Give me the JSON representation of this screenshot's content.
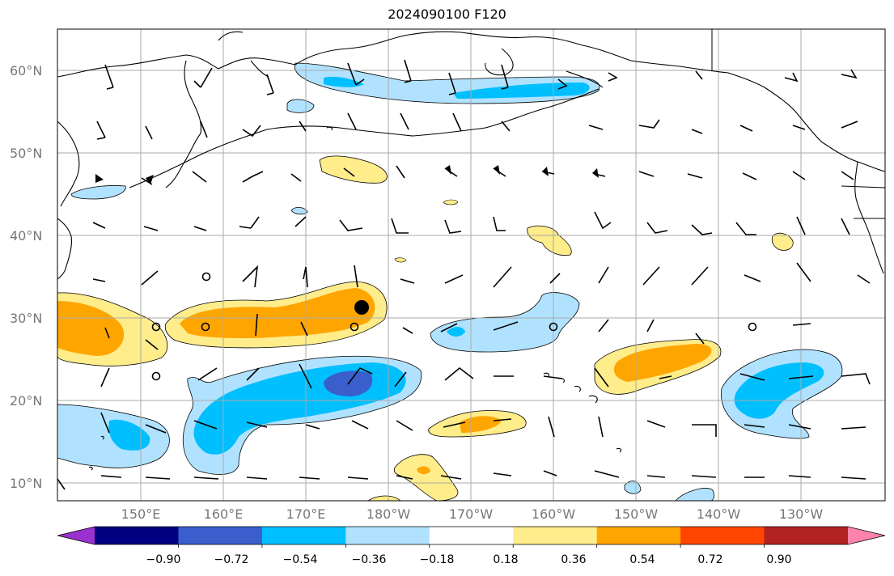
{
  "title": "2024090100 F120",
  "lat_labels": [
    "60°N",
    "50°N",
    "40°N",
    "30°N",
    "20°N",
    "10°N"
  ],
  "lon_labels": [
    "150°E",
    "160°E",
    "170°E",
    "180°W",
    "170°W",
    "160°W",
    "150°W",
    "140°W",
    "130°W"
  ],
  "colorbar": {
    "tick_labels": [
      "−0.90",
      "−0.72",
      "−0.54",
      "−0.36",
      "−0.18",
      "0.18",
      "0.36",
      "0.54",
      "0.72",
      "0.90"
    ],
    "colors": [
      "#9932cc",
      "#000080",
      "#3a5fcd",
      "#00bfff",
      "#b0e2ff",
      "#ffffff",
      "#ffec8b",
      "#ffa500",
      "#ff4500",
      "#b22222",
      "#ff82ab"
    ]
  },
  "fill_colors": {
    "light_yellow": "#ffec8b",
    "orange": "#ffa500",
    "light_blue": "#b0e2ff",
    "blue": "#00bfff",
    "dark_blue": "#3a5fcd"
  },
  "marker": {
    "lon": 183,
    "lat": 31.5
  }
}
